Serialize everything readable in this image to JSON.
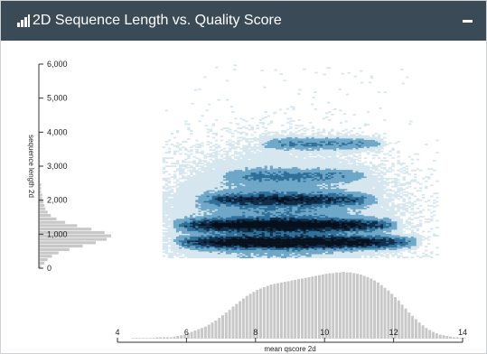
{
  "panel": {
    "title": "2D Sequence Length vs. Quality Score",
    "title_icon": "bar-chart-icon",
    "collapse_icon": "minus-icon"
  },
  "chart_data": {
    "type": "heatmap",
    "title": "2D Sequence Length vs. Quality Score",
    "xlabel": "mean qscore 2d",
    "ylabel": "sequence length 2d",
    "xlim": [
      4,
      14
    ],
    "ylim": [
      0,
      6000
    ],
    "x_ticks": [
      "4",
      "6",
      "8",
      "10",
      "12",
      "14"
    ],
    "y_ticks": [
      "0",
      "1,000",
      "2,000",
      "3,000",
      "4,000",
      "5,000",
      "6,000"
    ],
    "color_scale": [
      "#d6e7ef",
      "#6fa7c8",
      "#2f6f98",
      "#0f2f4c",
      "#05101c"
    ],
    "density_bands": [
      {
        "length": 750,
        "q_from": 5.5,
        "q_to": 12.8,
        "peak": 1.0
      },
      {
        "length": 1250,
        "q_from": 5.5,
        "q_to": 12.2,
        "peak": 0.92
      },
      {
        "length": 2000,
        "q_from": 6.2,
        "q_to": 11.6,
        "peak": 0.55
      },
      {
        "length": 2700,
        "q_from": 7.0,
        "q_to": 11.4,
        "peak": 0.3
      },
      {
        "length": 3650,
        "q_from": 8.0,
        "q_to": 11.8,
        "peak": 0.38
      }
    ],
    "qscore_histogram": {
      "bin_start": 4.4,
      "bin_width": 0.1,
      "counts": [
        1,
        1,
        1,
        1,
        1,
        1,
        1,
        2,
        2,
        2,
        2,
        2,
        3,
        4,
        5,
        6,
        8,
        10,
        12,
        14,
        16,
        18,
        21,
        24,
        27,
        31,
        35,
        39,
        43,
        48,
        52,
        56,
        60,
        64,
        67,
        70,
        73,
        75,
        77,
        79,
        81,
        82,
        83,
        84,
        85,
        86,
        87,
        88,
        89,
        90,
        91,
        92,
        93,
        94,
        95,
        96,
        97,
        98,
        98,
        99,
        99,
        100,
        99,
        99,
        98,
        97,
        96,
        94,
        92,
        90,
        87,
        84,
        80,
        76,
        72,
        67,
        62,
        57,
        51,
        45,
        39,
        34,
        29,
        24,
        20,
        16,
        13,
        10,
        8,
        6,
        5,
        4,
        3,
        2,
        2,
        1,
        1
      ]
    },
    "length_histogram": {
      "bin_start": 0,
      "bin_width": 100,
      "counts": [
        2,
        5,
        8,
        12,
        18,
        28,
        40,
        52,
        62,
        66,
        60,
        48,
        35,
        24,
        16,
        11,
        8,
        6,
        5,
        4,
        3,
        3,
        2,
        2,
        2,
        1,
        1,
        1,
        1,
        1,
        1,
        1,
        1,
        1,
        1,
        1,
        1,
        1,
        1,
        1
      ]
    }
  }
}
